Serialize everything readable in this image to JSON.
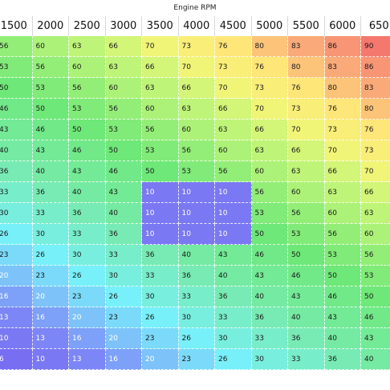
{
  "axis_title": "Engine RPM",
  "rpm_columns": [
    "1500",
    "2000",
    "2500",
    "3000",
    "3500",
    "4000",
    "4500",
    "5000",
    "5500",
    "6000",
    "650"
  ],
  "rows": [
    [
      56,
      60,
      63,
      66,
      70,
      73,
      76,
      80,
      83,
      86,
      90
    ],
    [
      53,
      56,
      60,
      63,
      66,
      70,
      73,
      76,
      80,
      83,
      86
    ],
    [
      50,
      53,
      56,
      60,
      63,
      66,
      70,
      73,
      76,
      80,
      83
    ],
    [
      46,
      50,
      53,
      56,
      60,
      63,
      66,
      70,
      73,
      76,
      80
    ],
    [
      43,
      46,
      50,
      53,
      56,
      60,
      63,
      66,
      70,
      73,
      76
    ],
    [
      40,
      43,
      46,
      50,
      53,
      56,
      60,
      63,
      66,
      70,
      73
    ],
    [
      36,
      40,
      43,
      46,
      50,
      53,
      56,
      60,
      63,
      66,
      70
    ],
    [
      33,
      36,
      40,
      43,
      10,
      10,
      10,
      56,
      60,
      63,
      66
    ],
    [
      30,
      33,
      36,
      40,
      10,
      10,
      10,
      53,
      56,
      60,
      63
    ],
    [
      26,
      30,
      33,
      36,
      10,
      10,
      10,
      50,
      53,
      56,
      60
    ],
    [
      23,
      26,
      30,
      33,
      36,
      40,
      43,
      46,
      50,
      53,
      56
    ],
    [
      20,
      23,
      26,
      30,
      33,
      36,
      40,
      43,
      46,
      50,
      53
    ],
    [
      16,
      20,
      23,
      26,
      30,
      33,
      36,
      40,
      43,
      46,
      50
    ],
    [
      13,
      16,
      20,
      23,
      26,
      30,
      33,
      36,
      40,
      43,
      46
    ],
    [
      10,
      13,
      16,
      20,
      23,
      26,
      30,
      33,
      36,
      40,
      43
    ],
    [
      6,
      10,
      13,
      16,
      20,
      23,
      26,
      30,
      33,
      36,
      40
    ]
  ],
  "colors": {
    "low": "#7b6cf2",
    "mid": "#6fe57a",
    "high": "#f97a6a"
  }
}
